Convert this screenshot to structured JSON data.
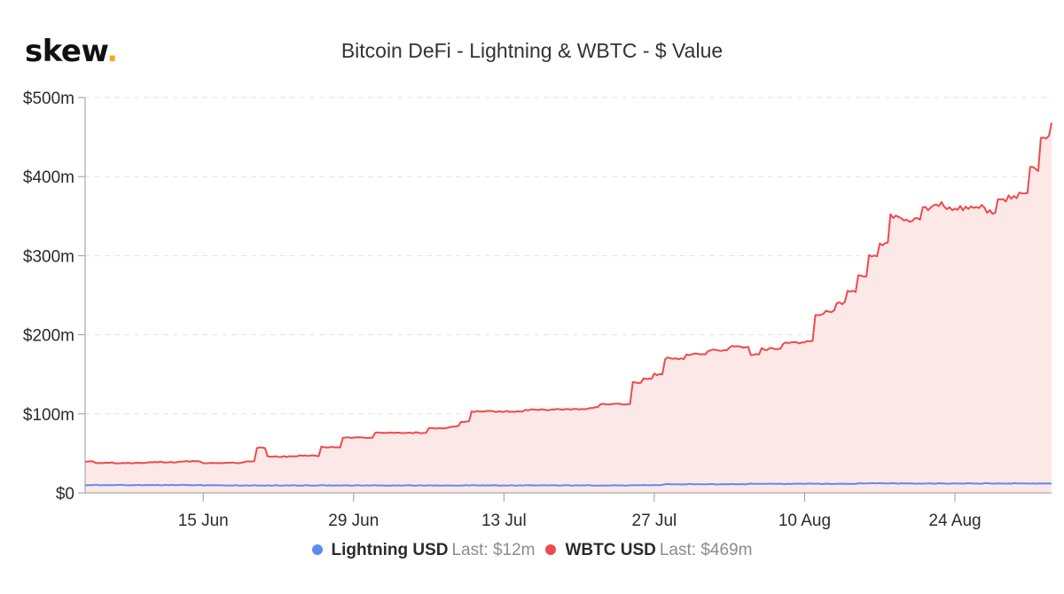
{
  "brand": {
    "name": "skew",
    "dot": "."
  },
  "chart_data": {
    "type": "area",
    "title": "Bitcoin DeFi - Lightning & WBTC - $ Value",
    "xlabel": "",
    "ylabel": "",
    "x_range": [
      "2020-06-04",
      "2020-09-02"
    ],
    "ylim": [
      0,
      500
    ],
    "y_ticks": [
      0,
      100,
      200,
      300,
      400,
      500
    ],
    "y_tick_labels": [
      "$0",
      "$100m",
      "$200m",
      "$300m",
      "$400m",
      "$500m"
    ],
    "x_ticks": [
      "2020-06-15",
      "2020-06-29",
      "2020-07-13",
      "2020-07-27",
      "2020-08-10",
      "2020-08-24"
    ],
    "x_tick_labels": [
      "15 Jun",
      "29 Jun",
      "13 Jul",
      "27 Jul",
      "10 Aug",
      "24 Aug"
    ],
    "grid": true,
    "legend_position": "bottom",
    "series": [
      {
        "name": "Lightning USD",
        "last_label": "Last: $12m",
        "color": "#5b8def",
        "fill": false,
        "x": [
          "2020-06-04",
          "2020-06-15",
          "2020-06-25",
          "2020-07-05",
          "2020-07-15",
          "2020-07-25",
          "2020-07-28",
          "2020-08-05",
          "2020-08-15",
          "2020-08-25",
          "2020-09-02"
        ],
        "y": [
          10,
          9.5,
          9.5,
          9.5,
          9.5,
          10,
          11,
          11.5,
          12,
          12,
          12
        ]
      },
      {
        "name": "WBTC USD",
        "last_label": "Last: $469m",
        "color": "#ef4a4a",
        "fill_color": "#fde8e8",
        "fill": true,
        "x": [
          "2020-06-04",
          "2020-06-05",
          "2020-06-10",
          "2020-06-13",
          "2020-06-15",
          "2020-06-17",
          "2020-06-19",
          "2020-06-20",
          "2020-06-21",
          "2020-06-24",
          "2020-06-26",
          "2020-06-28",
          "2020-07-01",
          "2020-07-02",
          "2020-07-06",
          "2020-07-08",
          "2020-07-09",
          "2020-07-10",
          "2020-07-15",
          "2020-07-18",
          "2020-07-21",
          "2020-07-22",
          "2020-07-25",
          "2020-07-26",
          "2020-07-27",
          "2020-07-28",
          "2020-07-30",
          "2020-08-01",
          "2020-08-03",
          "2020-08-05",
          "2020-08-06",
          "2020-08-08",
          "2020-08-10",
          "2020-08-11",
          "2020-08-12",
          "2020-08-13",
          "2020-08-14",
          "2020-08-15",
          "2020-08-16",
          "2020-08-17",
          "2020-08-18",
          "2020-08-19",
          "2020-08-21",
          "2020-08-22",
          "2020-08-23",
          "2020-08-25",
          "2020-08-27",
          "2020-08-28",
          "2020-08-29",
          "2020-08-30",
          "2020-08-31",
          "2020-09-01",
          "2020-09-02"
        ],
        "y": [
          40,
          38,
          39,
          40,
          38,
          38,
          40,
          57,
          46,
          47,
          58,
          70,
          76,
          76,
          82,
          84,
          90,
          103,
          105,
          106,
          108,
          112,
          140,
          145,
          150,
          170,
          175,
          180,
          185,
          175,
          182,
          190,
          192,
          225,
          230,
          240,
          255,
          275,
          300,
          315,
          350,
          345,
          360,
          365,
          360,
          362,
          355,
          370,
          375,
          380,
          410,
          450,
          469
        ]
      }
    ]
  }
}
